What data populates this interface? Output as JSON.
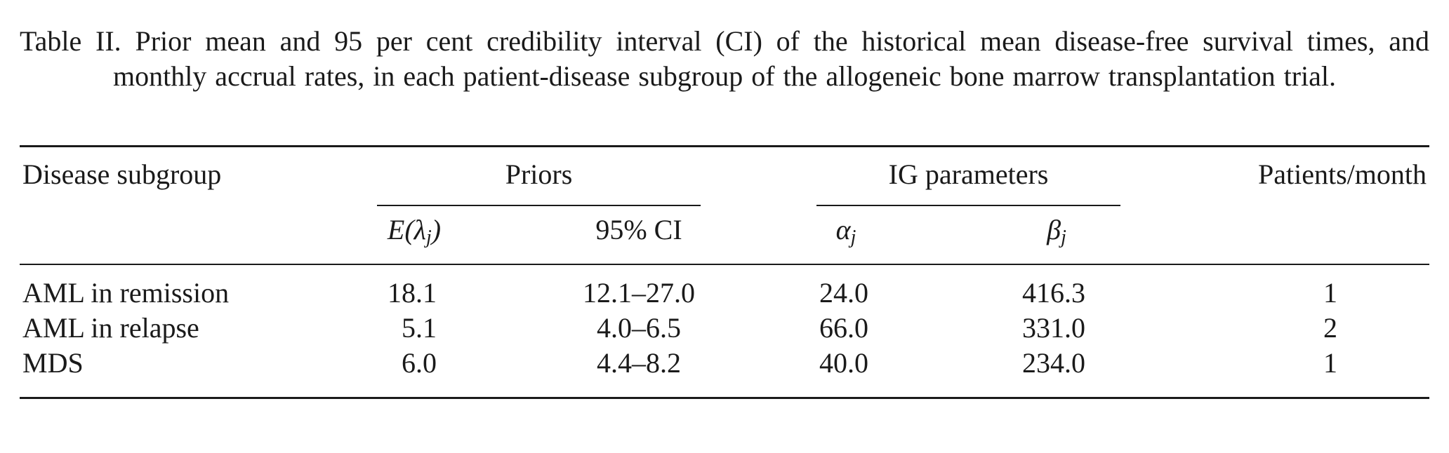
{
  "caption": "Table II. Prior mean and 95 per cent credibility interval (CI) of the historical mean disease-free survival times, and monthly accrual rates, in each patient-disease subgroup of the allogeneic bone marrow transplantation trial.",
  "headers": {
    "disease_subgroup": "Disease subgroup",
    "priors": "Priors",
    "ig_parameters": "IG parameters",
    "patients_month": "Patients/month",
    "e_lambda": "E(λj)",
    "ci": "95% CI",
    "alpha": "αj",
    "beta": "βj"
  },
  "rows": [
    {
      "subgroup": "AML in remission",
      "e_lambda": "18.1",
      "ci": "12.1–27.0",
      "alpha": "24.0",
      "beta": "416.3",
      "patients": "1"
    },
    {
      "subgroup": "AML in relapse",
      "e_lambda": "5.1",
      "ci": "4.0–6.5",
      "alpha": "66.0",
      "beta": "331.0",
      "patients": "2"
    },
    {
      "subgroup": "MDS",
      "e_lambda": "6.0",
      "ci": "4.4–8.2",
      "alpha": "40.0",
      "beta": "234.0",
      "patients": "1"
    }
  ]
}
